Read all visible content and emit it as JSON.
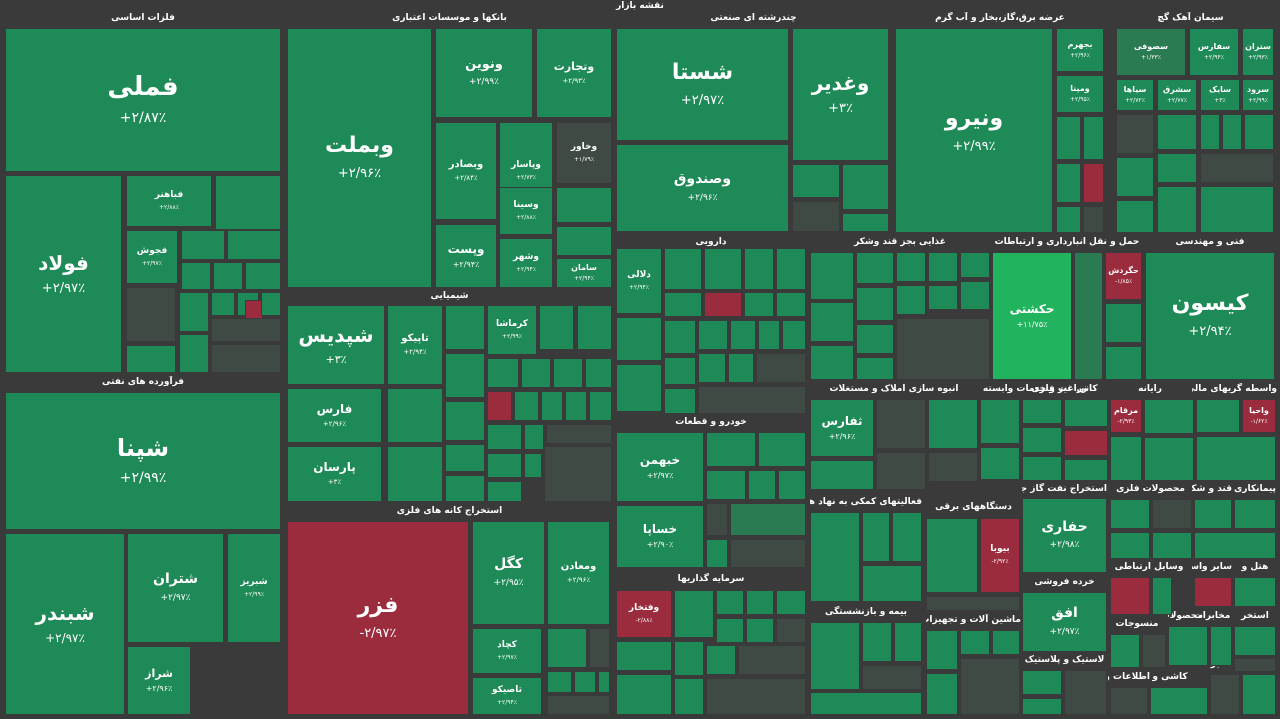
{
  "title": "نقشه بازار",
  "colors": {
    "up": "#1e8a57",
    "up_mid": "#2a7a52",
    "neutral": "#3f4a44",
    "down": "#9b2c3d",
    "bright": "#22b35e"
  },
  "sections": [
    "فلزات اساسی",
    "بانکها و موسسات اعتباری",
    "چندرشته ای صنعتی",
    "عرضه برق،گاز،بخار و آب گرم",
    "سیمان آهک گچ",
    "فرآورده های نفتی",
    "شیمیایی",
    "استخراج کانه های فلزی",
    "دارویی",
    "غذایی بجز قند وشکر",
    "حمل و نقل انبارداری و ارتباطات",
    "فنی و مهندسی",
    "خودرو و قطعات",
    "فعالیتهای کمکی به نهاد های",
    "انبوه سازی املاک و مستغلات",
    "زراعت و خدمات وابسته",
    "کانی غیر فلزی",
    "رایانه",
    "واسطه گریهای مالی و",
    "سرمایه گذاریها",
    "دستگاههای برقی",
    "استخراج نفت گاز جز",
    "محصولات فلزی",
    "قند و شکر",
    "پیمانکاری",
    "بیمه و بازنشستگی",
    "ماشین آلات و تجهیزات",
    "خرده فروشی",
    "سایر واسطه",
    "هتل و",
    "وسایل ارتباطی",
    "لاستیک و پلاستیک",
    "محصولات",
    "منسوجات",
    "استخر",
    "مخابرات",
    "کاشی و",
    "اطلاعات و",
    "محصولات کاغذ",
    "سایر استخراج"
  ],
  "tiles": [
    {
      "name": "فملی",
      "pct": "+۲/۸۷٪"
    },
    {
      "name": "فولاد",
      "pct": "+۲/۹۷٪"
    },
    {
      "name": "فباهنر",
      "pct": "+۲/۸۸٪"
    },
    {
      "name": "فجوش",
      "pct": "+۲/۹۷٪"
    },
    {
      "name": "ونیرو",
      "pct": "+۲/۹۹٪"
    },
    {
      "name": "وبملت",
      "pct": "+۲/۹۶٪"
    },
    {
      "name": "ونوین",
      "pct": "+۲/۹۹٪"
    },
    {
      "name": "وتجارت",
      "pct": "+۲/۹۳٪"
    },
    {
      "name": "وبصادر",
      "pct": "+۲/۸۴٪"
    },
    {
      "name": "وپاسار",
      "pct": "+۲/۷۳٪"
    },
    {
      "name": "وخاور",
      "pct": "+۱/۷۹٪"
    },
    {
      "name": "وسینا",
      "pct": "+۲/۸۸٪"
    },
    {
      "name": "وپست",
      "pct": "+۲/۹۴٪"
    },
    {
      "name": "وشهر",
      "pct": "+۲/۹۴٪"
    },
    {
      "name": "سامان",
      "pct": "+۲/۹۴٪"
    },
    {
      "name": "شستا",
      "pct": "+۲/۹۷٪"
    },
    {
      "name": "وصندوق",
      "pct": "+۲/۹۶٪"
    },
    {
      "name": "وغدیر",
      "pct": "+۳٪"
    },
    {
      "name": "ومپنا",
      "pct": "+۲/۹۵٪"
    },
    {
      "name": "بجهرم",
      "pct": "+۲/۹۶٪"
    },
    {
      "name": "سصوفی",
      "pct": "+۱/۳۳٪"
    },
    {
      "name": "سفارس",
      "pct": "+۲/۹۴٪"
    },
    {
      "name": "ستران",
      "pct": "+۲/۹۳٪"
    },
    {
      "name": "سیاها",
      "pct": "+۲/۷۲٪"
    },
    {
      "name": "سشرق",
      "pct": "+۲/۷۷٪"
    },
    {
      "name": "سایک",
      "pct": "+۳٪"
    },
    {
      "name": "سرود",
      "pct": "+۲/۹۹٪"
    },
    {
      "name": "شپنا",
      "pct": "+۲/۹۹٪"
    },
    {
      "name": "شبندر",
      "pct": "+۲/۹۷٪"
    },
    {
      "name": "شتران",
      "pct": "+۲/۹۷٪"
    },
    {
      "name": "شبریز",
      "pct": "+۲/۹۹٪"
    },
    {
      "name": "شراز",
      "pct": "+۲/۹۶٪"
    },
    {
      "name": "شپدیس",
      "pct": "+۳٪"
    },
    {
      "name": "تاپیکو",
      "pct": "+۲/۹۴٪"
    },
    {
      "name": "کرماشا",
      "pct": "+۲/۹۹٪"
    },
    {
      "name": "فارس",
      "pct": "+۲/۹۶٪"
    },
    {
      "name": "پارسان",
      "pct": "+۳٪"
    },
    {
      "name": "فزر",
      "pct": "-۲/۹۷٪"
    },
    {
      "name": "کگل",
      "pct": "+۲/۹۵٪"
    },
    {
      "name": "ومعادن",
      "pct": "+۲/۹۶٪"
    },
    {
      "name": "کچاد",
      "pct": "+۲/۹۷٪"
    },
    {
      "name": "تاصیکو",
      "pct": "+۲/۹۴٪"
    },
    {
      "name": "خبهمن",
      "pct": "+۲/۹۷٪"
    },
    {
      "name": "خساپا",
      "pct": "+۲/۹۰٪"
    },
    {
      "name": "حکشتی",
      "pct": "+۱۱/۷۵٪"
    },
    {
      "name": "کیسون",
      "pct": "+۲/۹۴٪"
    },
    {
      "name": "حفاری",
      "pct": "+۲/۹۸٪"
    },
    {
      "name": "افق",
      "pct": "+۲/۹۷٪"
    },
    {
      "name": "ثفارس",
      "pct": "+۲/۹۶٪"
    },
    {
      "name": "بیوبا",
      "pct": "-۲/۹۲٪"
    },
    {
      "name": "وفتخار",
      "pct": "-۲/۸۸٪"
    },
    {
      "name": "دلالی",
      "pct": "+۲/۹۴٪"
    },
    {
      "name": "حگردش",
      "pct": "-۱/۸۵٪"
    },
    {
      "name": "مرقام",
      "pct": "-۲/۹۳٪"
    },
    {
      "name": "واحیا",
      "pct": "-۱/۶۲٪"
    }
  ]
}
